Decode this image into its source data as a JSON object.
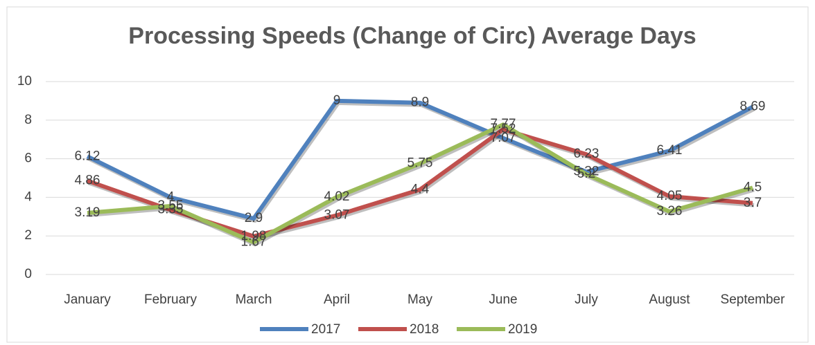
{
  "chart_data": {
    "type": "line",
    "title": "Processing Speeds (Change of Circ) Average Days",
    "categories": [
      "January",
      "February",
      "March",
      "April",
      "May",
      "June",
      "July",
      "August",
      "September"
    ],
    "series": [
      {
        "name": "2017",
        "color": "#4f81bd",
        "values": [
          6.12,
          4,
          2.9,
          9,
          8.9,
          7.07,
          5.32,
          6.41,
          8.69
        ]
      },
      {
        "name": "2018",
        "color": "#c0504d",
        "values": [
          4.86,
          3.35,
          1.98,
          3.07,
          4.4,
          7.52,
          6.23,
          4.05,
          3.7
        ]
      },
      {
        "name": "2019",
        "color": "#9bbb59",
        "values": [
          3.19,
          3.55,
          1.67,
          4.02,
          5.75,
          7.77,
          5.2,
          3.26,
          4.5
        ]
      }
    ],
    "ylim": [
      0,
      10
    ],
    "yticks": [
      0,
      2,
      4,
      6,
      8,
      10
    ],
    "grid": true,
    "legend": "bottom"
  }
}
